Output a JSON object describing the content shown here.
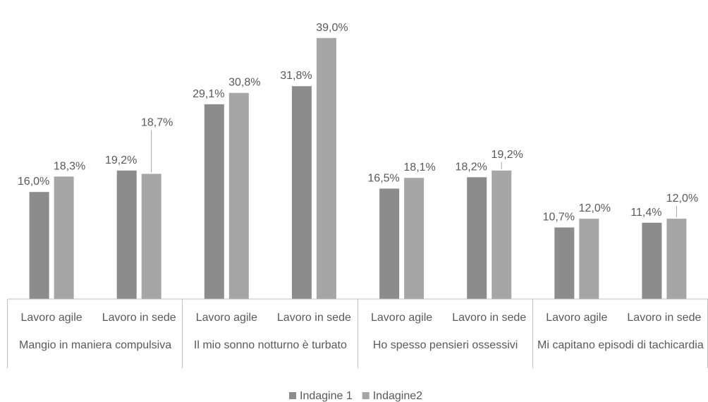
{
  "chart_data": {
    "type": "bar",
    "title": "",
    "xlabel": "",
    "ylabel": "",
    "ylim": [
      0,
      40
    ],
    "grid": false,
    "legend_position": "bottom",
    "groups": [
      {
        "label": "Mangio in maniera compulsiva",
        "categories": [
          "Lavoro agile",
          "Lavoro in sede"
        ]
      },
      {
        "label": "Il mio sonno notturno è turbato",
        "categories": [
          "Lavoro agile",
          "Lavoro in sede"
        ]
      },
      {
        "label": "Ho spesso pensieri ossessivi",
        "categories": [
          "Lavoro agile",
          "Lavoro in sede"
        ]
      },
      {
        "label": "Mi capitano episodi di tachicardia",
        "categories": [
          "Lavoro agile",
          "Lavoro in sede"
        ]
      }
    ],
    "categories": [
      "Lavoro agile",
      "Lavoro in sede",
      "Lavoro agile",
      "Lavoro in sede",
      "Lavoro agile",
      "Lavoro in sede",
      "Lavoro agile",
      "Lavoro in sede"
    ],
    "series": [
      {
        "name": "Indagine 1",
        "color": "#8c8c8c",
        "values": [
          16.0,
          19.2,
          29.1,
          31.8,
          16.5,
          18.2,
          10.7,
          11.4
        ],
        "labels": [
          "16,0%",
          "19,2%",
          "29,1%",
          "31,8%",
          "16,5%",
          "18,2%",
          "10,7%",
          "11,4%"
        ]
      },
      {
        "name": "Indagine2",
        "color": "#a6a6a6",
        "values": [
          18.3,
          18.7,
          30.8,
          39.0,
          18.1,
          19.2,
          12.0,
          12.0
        ],
        "labels": [
          "18,3%",
          "18,7%",
          "30,8%",
          "39,0%",
          "18,1%",
          "19,2%",
          "12,0%",
          "12,0%"
        ]
      }
    ]
  }
}
